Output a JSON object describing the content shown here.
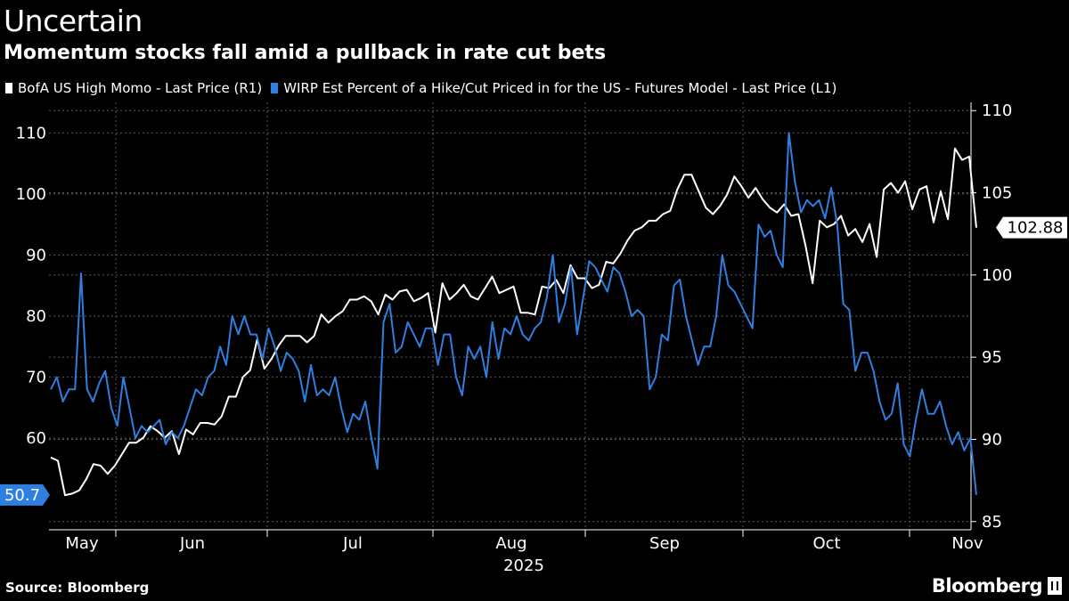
{
  "header": {
    "title": "Uncertain",
    "subtitle": "Momentum stocks fall amid a pullback in rate cut bets"
  },
  "footer": {
    "source": "Source: Bloomberg",
    "brand": "Bloomberg"
  },
  "icons": {
    "brand_icon": "bloomberg-terminal-icon"
  },
  "colors": {
    "background": "#000000",
    "white_series": "#ffffff",
    "blue_series": "#2f7fe0",
    "grid": "#555555"
  },
  "chart_data": {
    "type": "line",
    "x_labels": [
      "May",
      "Jun",
      "Jul",
      "Aug",
      "Sep",
      "Oct",
      "Nov"
    ],
    "x_sublabel": "2025",
    "grid": true,
    "legend_position": "top-left",
    "left_axis": {
      "ylim": [
        45,
        115
      ],
      "ticks": [
        60,
        70,
        80,
        90,
        100,
        110
      ],
      "tick_labels": [
        "60",
        "70",
        "80",
        "90",
        "100",
        "110"
      ]
    },
    "right_axis": {
      "ylim": [
        84.5,
        110.5
      ],
      "ticks": [
        85,
        90,
        95,
        100,
        105,
        110
      ],
      "tick_labels": [
        "85",
        "90",
        "95",
        "100",
        "105",
        "110"
      ]
    },
    "series": [
      {
        "name": "BofA US High Momo - Last Price (R1)",
        "axis": "right",
        "color": "#ffffff",
        "last_label": "102.88",
        "values": [
          88.9,
          88.7,
          86.6,
          86.7,
          86.9,
          87.6,
          88.5,
          88.4,
          87.9,
          88.4,
          89.1,
          89.8,
          89.8,
          90.1,
          90.8,
          90.5,
          90.1,
          90.5,
          89.1,
          90.6,
          90.3,
          91,
          91,
          90.9,
          91.4,
          92.6,
          92.6,
          93.8,
          94.2,
          96.1,
          94.3,
          94.9,
          95.7,
          96.3,
          96.3,
          96.3,
          95.9,
          96.3,
          97.6,
          97.1,
          97.5,
          97.8,
          98.5,
          98.5,
          98.7,
          98.4,
          97.6,
          98.8,
          98.5,
          99,
          99.1,
          98.4,
          98.6,
          98.9,
          96.5,
          99.5,
          98.5,
          98.9,
          99.4,
          98.7,
          98.5,
          99.2,
          99.9,
          98.9,
          99.1,
          99.3,
          97.7,
          97.7,
          97.6,
          99.3,
          99.2,
          99.7,
          98.9,
          100.6,
          99.8,
          99.8,
          99.2,
          99.4,
          100.8,
          100.7,
          101.3,
          102.1,
          102.7,
          102.9,
          103.3,
          103.3,
          103.7,
          103.9,
          105.2,
          106.1,
          106.1,
          105.1,
          104.1,
          103.7,
          104.2,
          104.9,
          106,
          105.4,
          104.7,
          105.3,
          104.6,
          104.1,
          103.8,
          104.3,
          103.6,
          103.7,
          101.8,
          99.5,
          103.3,
          102.9,
          103.1,
          103.6,
          102.4,
          102.8,
          102,
          103.1,
          101.1,
          105.2,
          105.6,
          105,
          105.7,
          104,
          105.2,
          105.4,
          103.2,
          105.1,
          103.4,
          107.7,
          107,
          107.2,
          102.88
        ]
      },
      {
        "name": "WIRP Est Percent of a Hike/Cut Priced in for the US - Futures Model - Last Price (L1)",
        "axis": "left",
        "color": "#2f7fe0",
        "last_label": "50.7",
        "values": [
          68,
          70,
          66,
          68,
          68,
          87,
          68,
          66,
          69,
          71,
          65,
          62,
          70,
          65,
          60,
          62,
          61,
          62,
          63,
          59,
          61,
          60,
          62,
          65,
          68,
          67,
          70,
          71,
          75,
          72,
          80,
          77,
          80,
          77,
          77,
          73,
          78,
          75,
          71,
          74,
          73,
          71,
          66,
          72,
          67,
          68,
          67,
          70,
          65,
          61,
          64,
          63,
          66,
          60,
          55,
          79,
          82,
          74,
          75,
          79,
          77,
          75,
          78,
          78,
          72,
          77,
          77,
          70,
          67,
          75,
          73,
          75,
          70,
          79,
          73,
          78,
          77,
          80,
          77,
          76,
          78,
          79,
          83,
          90,
          79,
          82,
          88,
          77,
          83,
          89,
          88,
          86,
          84,
          88,
          87,
          84,
          80,
          81,
          80,
          68,
          70,
          77,
          76,
          85,
          86,
          80,
          76,
          72,
          75,
          75,
          80,
          90,
          85,
          84,
          82,
          80,
          78,
          95,
          93,
          94,
          90,
          88,
          110,
          102,
          97,
          99,
          98,
          99,
          96,
          101,
          95,
          82,
          81,
          71,
          74,
          74,
          71,
          66,
          63,
          64,
          69,
          59,
          57,
          63,
          68,
          64,
          64,
          66,
          62,
          59,
          61,
          58,
          60,
          50.7
        ]
      }
    ]
  }
}
